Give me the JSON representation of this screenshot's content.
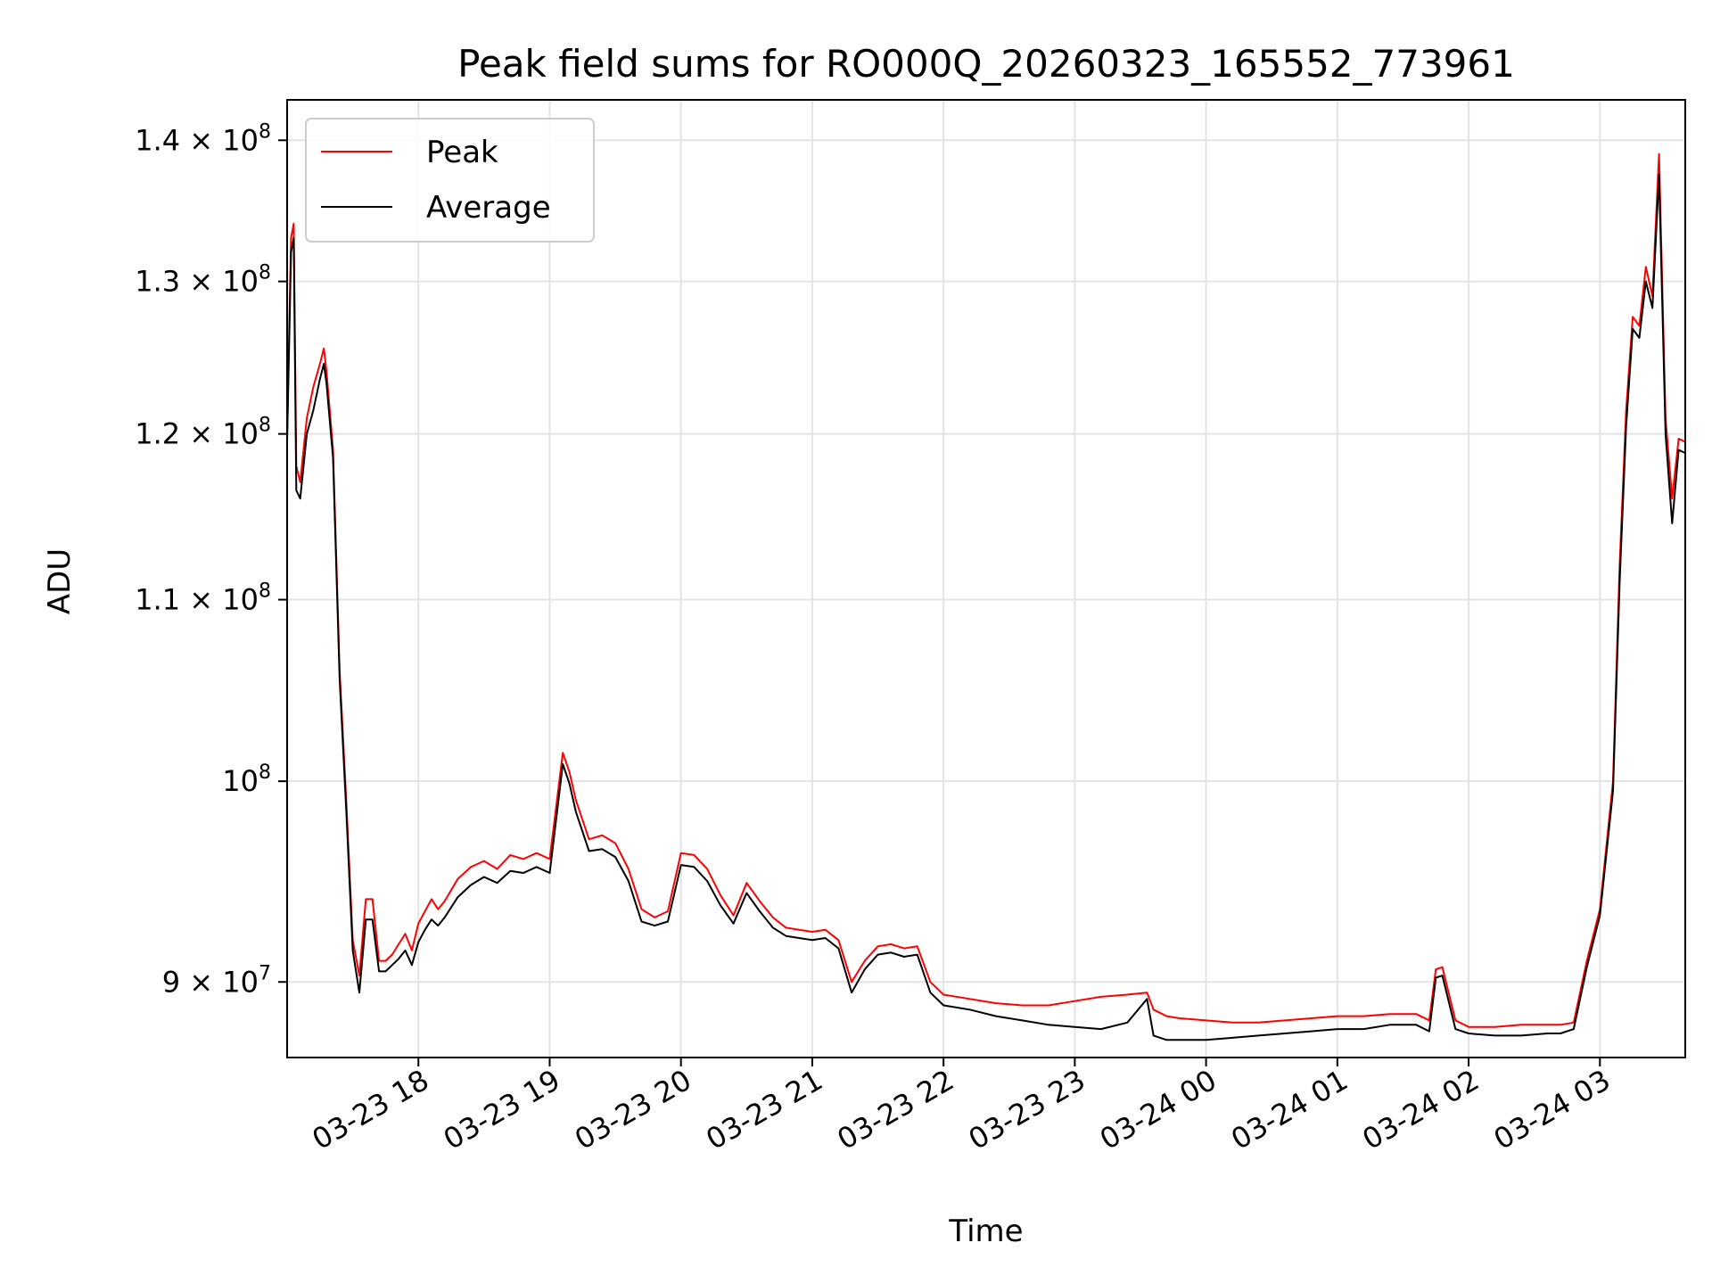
{
  "chart_data": {
    "type": "line",
    "title": "Peak field sums for RO000Q_20260323_165552_773961",
    "xlabel": "Time",
    "ylabel": "ADU",
    "yscale": "log",
    "grid": true,
    "legend_position": "top-left",
    "x_unit": "hours since 03-23 17:00",
    "xlim": [
      0,
      10.65
    ],
    "ylim": [
      86500000,
      143000000
    ],
    "x_ticks": [
      {
        "value": 1,
        "label": "03-23 18"
      },
      {
        "value": 2,
        "label": "03-23 19"
      },
      {
        "value": 3,
        "label": "03-23 20"
      },
      {
        "value": 4,
        "label": "03-23 21"
      },
      {
        "value": 5,
        "label": "03-23 22"
      },
      {
        "value": 6,
        "label": "03-23 23"
      },
      {
        "value": 7,
        "label": "03-24 00"
      },
      {
        "value": 8,
        "label": "03-24 01"
      },
      {
        "value": 9,
        "label": "03-24 02"
      },
      {
        "value": 10,
        "label": "03-24 03"
      }
    ],
    "y_ticks": [
      {
        "value": 90000000,
        "base": "9",
        "exp": "7"
      },
      {
        "value": 100000000,
        "base": "10",
        "exp": "8"
      },
      {
        "value": 110000000,
        "base": "1.1",
        "exp": "8"
      },
      {
        "value": 120000000,
        "base": "1.2",
        "exp": "8"
      },
      {
        "value": 130000000,
        "base": "1.3",
        "exp": "8"
      },
      {
        "value": 140000000,
        "base": "1.4",
        "exp": "8"
      }
    ],
    "series": [
      {
        "name": "Peak",
        "color": "#ff0000",
        "x": [
          0.0,
          0.03,
          0.05,
          0.07,
          0.1,
          0.15,
          0.2,
          0.25,
          0.28,
          0.3,
          0.35,
          0.4,
          0.45,
          0.5,
          0.55,
          0.6,
          0.65,
          0.7,
          0.75,
          0.8,
          0.85,
          0.9,
          0.95,
          1.0,
          1.05,
          1.1,
          1.15,
          1.2,
          1.3,
          1.4,
          1.5,
          1.6,
          1.7,
          1.8,
          1.9,
          2.0,
          2.1,
          2.15,
          2.2,
          2.3,
          2.4,
          2.5,
          2.6,
          2.7,
          2.8,
          2.9,
          3.0,
          3.1,
          3.2,
          3.3,
          3.4,
          3.5,
          3.6,
          3.7,
          3.8,
          3.9,
          4.0,
          4.1,
          4.2,
          4.3,
          4.4,
          4.5,
          4.6,
          4.7,
          4.8,
          4.9,
          5.0,
          5.2,
          5.4,
          5.6,
          5.8,
          6.0,
          6.2,
          6.4,
          6.55,
          6.6,
          6.7,
          6.8,
          7.0,
          7.2,
          7.4,
          7.6,
          7.8,
          8.0,
          8.2,
          8.4,
          8.6,
          8.7,
          8.75,
          8.8,
          8.9,
          9.0,
          9.2,
          9.4,
          9.6,
          9.7,
          9.8,
          9.9,
          10.0,
          10.1,
          10.15,
          10.2,
          10.25,
          10.3,
          10.35,
          10.4,
          10.45,
          10.5,
          10.55,
          10.6,
          10.65
        ],
        "y": [
          120000000,
          133000000,
          134000000,
          118000000,
          117000000,
          121000000,
          123000000,
          124500000,
          125500000,
          124000000,
          119000000,
          106000000,
          99000000,
          92000000,
          90300000,
          94000000,
          94000000,
          91000000,
          91000000,
          91300000,
          91800000,
          92300000,
          91500000,
          92800000,
          93400000,
          94000000,
          93500000,
          93900000,
          95000000,
          95600000,
          95900000,
          95500000,
          96200000,
          96000000,
          96300000,
          96000000,
          101500000,
          100500000,
          99000000,
          97000000,
          97200000,
          96800000,
          95500000,
          93500000,
          93100000,
          93400000,
          96300000,
          96200000,
          95500000,
          94200000,
          93200000,
          94800000,
          93900000,
          93100000,
          92600000,
          92500000,
          92400000,
          92500000,
          92000000,
          90000000,
          91000000,
          91700000,
          91800000,
          91600000,
          91700000,
          90000000,
          89400000,
          89200000,
          89000000,
          88900000,
          88900000,
          89100000,
          89300000,
          89400000,
          89500000,
          88700000,
          88400000,
          88300000,
          88200000,
          88100000,
          88100000,
          88200000,
          88300000,
          88400000,
          88400000,
          88500000,
          88500000,
          88200000,
          90600000,
          90700000,
          88200000,
          87900000,
          87900000,
          88000000,
          88000000,
          88000000,
          88100000,
          91000000,
          93500000,
          100000000,
          112000000,
          121500000,
          127600000,
          127000000,
          131000000,
          129000000,
          139000000,
          121000000,
          116000000,
          119700000,
          119500000
        ]
      },
      {
        "name": "Average",
        "color": "#000000",
        "x": [
          0.0,
          0.03,
          0.05,
          0.07,
          0.1,
          0.15,
          0.2,
          0.25,
          0.28,
          0.3,
          0.35,
          0.4,
          0.45,
          0.5,
          0.55,
          0.6,
          0.65,
          0.7,
          0.75,
          0.8,
          0.85,
          0.9,
          0.95,
          1.0,
          1.05,
          1.1,
          1.15,
          1.2,
          1.3,
          1.4,
          1.5,
          1.6,
          1.7,
          1.8,
          1.9,
          2.0,
          2.1,
          2.15,
          2.2,
          2.3,
          2.4,
          2.5,
          2.6,
          2.7,
          2.8,
          2.9,
          3.0,
          3.1,
          3.2,
          3.3,
          3.4,
          3.5,
          3.6,
          3.7,
          3.8,
          3.9,
          4.0,
          4.1,
          4.2,
          4.3,
          4.4,
          4.5,
          4.6,
          4.7,
          4.8,
          4.9,
          5.0,
          5.2,
          5.4,
          5.6,
          5.8,
          6.0,
          6.2,
          6.4,
          6.55,
          6.6,
          6.7,
          6.8,
          7.0,
          7.2,
          7.4,
          7.6,
          7.8,
          8.0,
          8.2,
          8.4,
          8.6,
          8.7,
          8.75,
          8.8,
          8.9,
          9.0,
          9.2,
          9.4,
          9.6,
          9.7,
          9.8,
          9.9,
          10.0,
          10.1,
          10.15,
          10.2,
          10.25,
          10.3,
          10.35,
          10.4,
          10.45,
          10.5,
          10.55,
          10.6,
          10.65
        ],
        "y": [
          119500000,
          132000000,
          133000000,
          116500000,
          116000000,
          120000000,
          121500000,
          123500000,
          124500000,
          123200000,
          118500000,
          105500000,
          98500000,
          91500000,
          89500000,
          93000000,
          93000000,
          90500000,
          90500000,
          90800000,
          91100000,
          91500000,
          90800000,
          91900000,
          92500000,
          93000000,
          92700000,
          93100000,
          94100000,
          94700000,
          95100000,
          94800000,
          95400000,
          95300000,
          95600000,
          95300000,
          100900000,
          99900000,
          98400000,
          96400000,
          96500000,
          96100000,
          94900000,
          92900000,
          92700000,
          92900000,
          95700000,
          95600000,
          94900000,
          93700000,
          92800000,
          94300000,
          93400000,
          92600000,
          92200000,
          92100000,
          92000000,
          92100000,
          91600000,
          89500000,
          90600000,
          91300000,
          91400000,
          91200000,
          91300000,
          89500000,
          88900000,
          88700000,
          88400000,
          88200000,
          88000000,
          87900000,
          87800000,
          88100000,
          89200000,
          87500000,
          87300000,
          87300000,
          87300000,
          87400000,
          87500000,
          87600000,
          87700000,
          87800000,
          87800000,
          88000000,
          88000000,
          87700000,
          90200000,
          90300000,
          87800000,
          87600000,
          87500000,
          87500000,
          87600000,
          87600000,
          87800000,
          90700000,
          93200000,
          99500000,
          111000000,
          120500000,
          126800000,
          126200000,
          130000000,
          128200000,
          137500000,
          120000000,
          114500000,
          119000000,
          118800000
        ]
      }
    ],
    "legend": [
      {
        "name": "Peak",
        "color": "#ff0000"
      },
      {
        "name": "Average",
        "color": "#000000"
      }
    ]
  }
}
